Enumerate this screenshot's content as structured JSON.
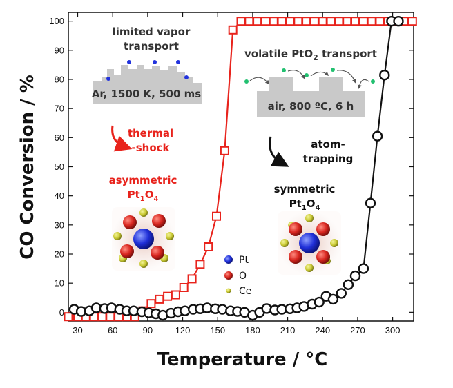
{
  "chart_data": {
    "type": "line",
    "xlabel": "Temperature / °C",
    "ylabel": "CO Conversion / %",
    "xlim": [
      22,
      318
    ],
    "ylim": [
      -3,
      103
    ],
    "xticks": [
      "30",
      "60",
      "90",
      "120",
      "150",
      "180",
      "210",
      "240",
      "270",
      "300"
    ],
    "yticks": [
      "0",
      "10",
      "20",
      "30",
      "40",
      "50",
      "60",
      "70",
      "80",
      "90",
      "100"
    ],
    "grid": false,
    "series": [
      {
        "marker": "square",
        "color": "#e8231c",
        "points": [
          [
            22,
            -1.5
          ],
          [
            30,
            -1.5
          ],
          [
            37,
            -1.5
          ],
          [
            44,
            -1.5
          ],
          [
            51,
            -1.5
          ],
          [
            58,
            -1.5
          ],
          [
            65,
            -1.5
          ],
          [
            72,
            -1.5
          ],
          [
            79,
            -1.5
          ],
          [
            86,
            0.5
          ],
          [
            93,
            3.0
          ],
          [
            100,
            4.5
          ],
          [
            107,
            5.5
          ],
          [
            114,
            6.0
          ],
          [
            121,
            8.5
          ],
          [
            128,
            11.5
          ],
          [
            135,
            16.5
          ],
          [
            142,
            22.5
          ],
          [
            149,
            33.0
          ],
          [
            156,
            55.5
          ],
          [
            163,
            97.0
          ],
          [
            170,
            100
          ],
          [
            177,
            100
          ],
          [
            184,
            100
          ],
          [
            191,
            100
          ],
          [
            198,
            100
          ],
          [
            205,
            100
          ],
          [
            212,
            100
          ],
          [
            219,
            100
          ],
          [
            226,
            100
          ],
          [
            233,
            100
          ],
          [
            240,
            100
          ],
          [
            247,
            100
          ],
          [
            254,
            100
          ],
          [
            261,
            100
          ],
          [
            268,
            100
          ],
          [
            275,
            100
          ],
          [
            282,
            100
          ],
          [
            289,
            100
          ],
          [
            296,
            100
          ],
          [
            303,
            100
          ],
          [
            310,
            100
          ],
          [
            317,
            100
          ]
        ]
      },
      {
        "marker": "circle",
        "color": "#111111",
        "points": [
          [
            27,
            1.0
          ],
          [
            33,
            0.3
          ],
          [
            40,
            0.5
          ],
          [
            46,
            1.5
          ],
          [
            53,
            1.3
          ],
          [
            59,
            1.5
          ],
          [
            66,
            1.0
          ],
          [
            72,
            0.5
          ],
          [
            78,
            0.5
          ],
          [
            85,
            0.2
          ],
          [
            91,
            -0.2
          ],
          [
            97,
            -0.5
          ],
          [
            103,
            -1.0
          ],
          [
            110,
            -0.3
          ],
          [
            116,
            0.2
          ],
          [
            122,
            0.5
          ],
          [
            129,
            1.0
          ],
          [
            135,
            1.2
          ],
          [
            141,
            1.5
          ],
          [
            148,
            1.2
          ],
          [
            154,
            1.0
          ],
          [
            161,
            0.5
          ],
          [
            167,
            0.3
          ],
          [
            173,
            0.0
          ],
          [
            180,
            -1.0
          ],
          [
            186,
            0.0
          ],
          [
            192,
            1.3
          ],
          [
            199,
            0.8
          ],
          [
            205,
            1.0
          ],
          [
            212,
            1.2
          ],
          [
            218,
            1.5
          ],
          [
            224,
            2.0
          ],
          [
            231,
            2.8
          ],
          [
            237,
            3.5
          ],
          [
            243,
            5.5
          ],
          [
            249,
            4.5
          ],
          [
            256,
            6.5
          ],
          [
            262,
            9.5
          ],
          [
            268,
            12.5
          ],
          [
            275,
            15.0
          ],
          [
            281,
            37.5
          ],
          [
            287,
            60.5
          ],
          [
            293,
            81.5
          ],
          [
            299,
            100
          ],
          [
            305,
            100
          ]
        ]
      }
    ]
  },
  "annotations": {
    "limited_line1": "limited vapor",
    "limited_line2": "transport",
    "ar_conditions": "Ar, 1500 K, 500 ms",
    "volatile_prefix": "volatile PtO",
    "volatile_sub": "2",
    "volatile_suffix": " transport",
    "air_conditions": "air, 800 ºC, 6 h",
    "thermal": "thermal",
    "shock": "-shock",
    "atom": "atom-",
    "trapping": "trapping",
    "asymmetric": "asymmetric",
    "symmetric": "symmetric",
    "pt_formula_a": "Pt",
    "pt_formula_sub1": "1",
    "pt_formula_b": "O",
    "pt_formula_sub4": "4"
  },
  "legend": [
    {
      "label": "Pt",
      "color": "#2233dd"
    },
    {
      "label": "O",
      "color": "#d8261f"
    },
    {
      "label": "Ce",
      "color": "#c8c832"
    }
  ]
}
